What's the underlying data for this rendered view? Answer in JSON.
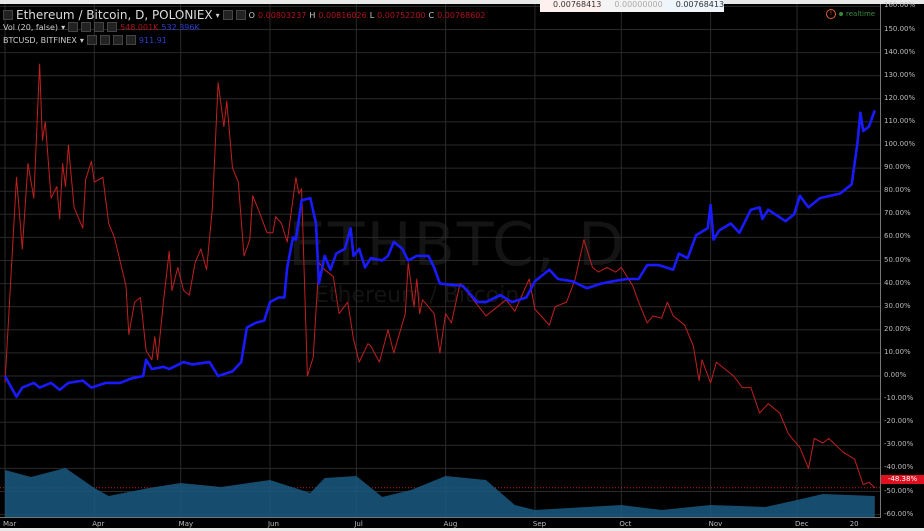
{
  "header": {
    "symbol_title": "Ethereum / Bitcoin, D, POLONIEX",
    "ohlc": {
      "o_label": "O",
      "o": "0.00803237",
      "h_label": "H",
      "h": "0.00816026",
      "l_label": "L",
      "l": "0.00752200",
      "c_label": "C",
      "c": "0.00768602"
    },
    "volume_label": "Vol (20, false)",
    "volume_values": [
      "548.001K",
      "532.396K"
    ],
    "compare_label": "BTCUSD, BITFINEX",
    "compare_value": "911.91",
    "overlay_values": [
      "0.00768413",
      "0.00000000",
      "0.00768413"
    ],
    "realtime": "realtime",
    "icons": [
      "menu-square-icon",
      "chevron-down-icon",
      "warning-circle-icon",
      "realtime-dot-icon"
    ]
  },
  "watermark": {
    "main": "ETHBTC, D",
    "sub": "Ethereum / Bitcoin"
  },
  "colors": {
    "eth_btc": "#c0201f",
    "btcusd": "#1a1aff",
    "volume": "#1a5a82",
    "last_label": "#e01020"
  },
  "chart_data": {
    "type": "line",
    "y_axis": {
      "ticks": [
        160,
        150,
        140,
        130,
        120,
        110,
        100,
        90,
        80,
        70,
        60,
        50,
        40,
        30,
        20,
        10,
        0,
        -10,
        -20,
        -30,
        -40,
        -50,
        -60
      ],
      "unit": "%",
      "range": [
        -60,
        160
      ]
    },
    "x_ticks": [
      {
        "label": "Mar",
        "date": "03-01"
      },
      {
        "label": "Apr",
        "date": "04-01"
      },
      {
        "label": "May",
        "date": "05-01"
      },
      {
        "label": "Jun",
        "date": "06-01"
      },
      {
        "label": "Jul",
        "date": "07-01"
      },
      {
        "label": "Aug",
        "date": "08-01"
      },
      {
        "label": "Sep",
        "date": "09-01"
      },
      {
        "label": "Oct",
        "date": "10-01"
      },
      {
        "label": "Nov",
        "date": "11-01"
      },
      {
        "label": "Dec",
        "date": "12-01"
      },
      {
        "label": "20",
        "date": "12-20"
      }
    ],
    "last_value_label": "-48.38%",
    "grid": true,
    "series": [
      {
        "name": "Ethereum / Bitcoin, D, POLONIEX",
        "points": [
          [
            "03-01",
            -3
          ],
          [
            "03-05",
            86
          ],
          [
            "03-07",
            55
          ],
          [
            "03-09",
            92
          ],
          [
            "03-11",
            77
          ],
          [
            "03-13",
            135
          ],
          [
            "03-14",
            102
          ],
          [
            "03-15",
            110
          ],
          [
            "03-17",
            77
          ],
          [
            "03-19",
            82
          ],
          [
            "03-20",
            68
          ],
          [
            "03-21",
            92
          ],
          [
            "03-22",
            82
          ],
          [
            "03-23",
            100
          ],
          [
            "03-25",
            73
          ],
          [
            "03-28",
            64
          ],
          [
            "03-29",
            85
          ],
          [
            "03-31",
            93
          ],
          [
            "04-01",
            84
          ],
          [
            "04-04",
            86
          ],
          [
            "04-06",
            66
          ],
          [
            "04-08",
            60
          ],
          [
            "04-12",
            39
          ],
          [
            "04-13",
            18
          ],
          [
            "04-15",
            32
          ],
          [
            "04-17",
            34
          ],
          [
            "04-19",
            11
          ],
          [
            "04-21",
            7
          ],
          [
            "04-22",
            17
          ],
          [
            "04-23",
            7
          ],
          [
            "04-25",
            32
          ],
          [
            "04-27",
            54
          ],
          [
            "04-28",
            37
          ],
          [
            "04-30",
            47
          ],
          [
            "05-02",
            37
          ],
          [
            "05-04",
            35
          ],
          [
            "05-06",
            49
          ],
          [
            "05-08",
            55
          ],
          [
            "05-10",
            46
          ],
          [
            "05-12",
            73
          ],
          [
            "05-14",
            127
          ],
          [
            "05-16",
            108
          ],
          [
            "05-17",
            119
          ],
          [
            "05-19",
            90
          ],
          [
            "05-21",
            84
          ],
          [
            "05-23",
            52
          ],
          [
            "05-25",
            59
          ],
          [
            "05-26",
            78
          ],
          [
            "05-28",
            72
          ],
          [
            "05-31",
            62
          ],
          [
            "06-02",
            62
          ],
          [
            "06-03",
            69
          ],
          [
            "06-05",
            66
          ],
          [
            "06-07",
            58
          ],
          [
            "06-10",
            86
          ],
          [
            "06-11",
            79
          ],
          [
            "06-12",
            81
          ],
          [
            "06-14",
            0
          ],
          [
            "06-16",
            8
          ],
          [
            "06-18",
            49
          ],
          [
            "06-20",
            46
          ],
          [
            "06-23",
            43
          ],
          [
            "06-25",
            27
          ],
          [
            "06-28",
            32
          ],
          [
            "06-30",
            16
          ],
          [
            "07-02",
            6
          ],
          [
            "07-05",
            14
          ],
          [
            "07-06",
            13
          ],
          [
            "07-09",
            6
          ],
          [
            "07-12",
            20
          ],
          [
            "07-14",
            10
          ],
          [
            "07-18",
            27
          ],
          [
            "07-19",
            49
          ],
          [
            "07-21",
            30
          ],
          [
            "07-22",
            42
          ],
          [
            "07-23",
            27
          ],
          [
            "07-24",
            33
          ],
          [
            "07-28",
            27
          ],
          [
            "07-30",
            10
          ],
          [
            "08-01",
            27
          ],
          [
            "08-03",
            23
          ],
          [
            "08-06",
            40
          ],
          [
            "08-10",
            34
          ],
          [
            "08-15",
            26
          ],
          [
            "08-19",
            30
          ],
          [
            "08-22",
            33
          ],
          [
            "08-25",
            28
          ],
          [
            "08-30",
            42
          ],
          [
            "09-01",
            29
          ],
          [
            "09-06",
            22
          ],
          [
            "09-08",
            30
          ],
          [
            "09-12",
            32
          ],
          [
            "09-15",
            42
          ],
          [
            "09-18",
            59
          ],
          [
            "09-21",
            47
          ],
          [
            "09-23",
            45
          ],
          [
            "09-26",
            47
          ],
          [
            "09-29",
            45
          ],
          [
            "10-01",
            47
          ],
          [
            "10-05",
            39
          ],
          [
            "10-07",
            32
          ],
          [
            "10-10",
            23
          ],
          [
            "10-12",
            26
          ],
          [
            "10-15",
            25
          ],
          [
            "10-17",
            32
          ],
          [
            "10-19",
            26
          ],
          [
            "10-23",
            22
          ],
          [
            "10-26",
            13
          ],
          [
            "10-28",
            -2
          ],
          [
            "10-29",
            7
          ],
          [
            "11-01",
            -3
          ],
          [
            "11-03",
            6
          ],
          [
            "11-06",
            3
          ],
          [
            "11-09",
            0
          ],
          [
            "11-12",
            -5
          ],
          [
            "11-15",
            -5
          ],
          [
            "11-18",
            -16
          ],
          [
            "11-21",
            -12
          ],
          [
            "11-25",
            -16
          ],
          [
            "11-28",
            -25
          ],
          [
            "12-02",
            -31
          ],
          [
            "12-05",
            -40
          ],
          [
            "12-07",
            -27
          ],
          [
            "12-10",
            -29
          ],
          [
            "12-12",
            -27
          ],
          [
            "12-17",
            -33
          ],
          [
            "12-21",
            -36
          ],
          [
            "12-24",
            -47
          ],
          [
            "12-26",
            -46
          ],
          [
            "12-28",
            -48.38
          ]
        ]
      },
      {
        "name": "BTCUSD, BITFINEX",
        "points": [
          [
            "03-01",
            0
          ],
          [
            "03-05",
            -9
          ],
          [
            "03-07",
            -5
          ],
          [
            "03-11",
            -3
          ],
          [
            "03-13",
            -5
          ],
          [
            "03-17",
            -3
          ],
          [
            "03-20",
            -6
          ],
          [
            "03-23",
            -3
          ],
          [
            "03-28",
            -2
          ],
          [
            "03-31",
            -5
          ],
          [
            "04-05",
            -3
          ],
          [
            "04-10",
            -3
          ],
          [
            "04-14",
            -1
          ],
          [
            "04-18",
            0
          ],
          [
            "04-19",
            7
          ],
          [
            "04-21",
            3
          ],
          [
            "04-25",
            4
          ],
          [
            "04-27",
            3
          ],
          [
            "05-02",
            6
          ],
          [
            "05-05",
            5
          ],
          [
            "05-11",
            6
          ],
          [
            "05-14",
            0
          ],
          [
            "05-19",
            2
          ],
          [
            "05-22",
            6
          ],
          [
            "05-24",
            21
          ],
          [
            "05-27",
            23
          ],
          [
            "05-30",
            24
          ],
          [
            "06-01",
            32
          ],
          [
            "06-04",
            34
          ],
          [
            "06-06",
            34
          ],
          [
            "06-07",
            47
          ],
          [
            "06-09",
            60
          ],
          [
            "06-10",
            59
          ],
          [
            "06-12",
            76
          ],
          [
            "06-15",
            77
          ],
          [
            "06-17",
            66
          ],
          [
            "06-18",
            40
          ],
          [
            "06-20",
            52
          ],
          [
            "06-22",
            46
          ],
          [
            "06-24",
            53
          ],
          [
            "06-27",
            55
          ],
          [
            "06-29",
            64
          ],
          [
            "06-30",
            52
          ],
          [
            "07-02",
            55
          ],
          [
            "07-04",
            47
          ],
          [
            "07-06",
            51
          ],
          [
            "07-10",
            50
          ],
          [
            "07-12",
            52
          ],
          [
            "07-14",
            58
          ],
          [
            "07-17",
            55
          ],
          [
            "07-19",
            50
          ],
          [
            "07-22",
            52
          ],
          [
            "07-26",
            52
          ],
          [
            "07-28",
            47
          ],
          [
            "07-30",
            40
          ],
          [
            "08-07",
            39
          ],
          [
            "08-12",
            32
          ],
          [
            "08-15",
            32
          ],
          [
            "08-20",
            35
          ],
          [
            "08-24",
            32
          ],
          [
            "08-29",
            34
          ],
          [
            "09-01",
            41
          ],
          [
            "09-06",
            46
          ],
          [
            "09-09",
            42
          ],
          [
            "09-14",
            41
          ],
          [
            "09-19",
            38
          ],
          [
            "09-24",
            40
          ],
          [
            "09-28",
            41
          ],
          [
            "10-03",
            42
          ],
          [
            "10-07",
            42
          ],
          [
            "10-10",
            48
          ],
          [
            "10-14",
            48
          ],
          [
            "10-19",
            46
          ],
          [
            "10-21",
            53
          ],
          [
            "10-24",
            51
          ],
          [
            "10-27",
            61
          ],
          [
            "10-31",
            64
          ],
          [
            "11-01",
            74
          ],
          [
            "11-02",
            59
          ],
          [
            "11-04",
            63
          ],
          [
            "11-08",
            66
          ],
          [
            "11-11",
            62
          ],
          [
            "11-15",
            72
          ],
          [
            "11-18",
            73
          ],
          [
            "11-19",
            68
          ],
          [
            "11-21",
            72
          ],
          [
            "11-27",
            67
          ],
          [
            "11-30",
            70
          ],
          [
            "12-02",
            78
          ],
          [
            "12-05",
            73
          ],
          [
            "12-09",
            77
          ],
          [
            "12-16",
            79
          ],
          [
            "12-20",
            83
          ],
          [
            "12-22",
            101
          ],
          [
            "12-23",
            114
          ],
          [
            "12-24",
            106
          ],
          [
            "12-26",
            108
          ],
          [
            "12-28",
            115
          ]
        ]
      }
    ],
    "volume_ma_relative": [
      [
        "03-01",
        0.94
      ],
      [
        "03-10",
        0.8
      ],
      [
        "03-22",
        0.98
      ],
      [
        "04-01",
        0.58
      ],
      [
        "04-06",
        0.42
      ],
      [
        "04-20",
        0.58
      ],
      [
        "05-01",
        0.68
      ],
      [
        "05-15",
        0.6
      ],
      [
        "06-01",
        0.74
      ],
      [
        "06-15",
        0.48
      ],
      [
        "06-20",
        0.78
      ],
      [
        "07-01",
        0.82
      ],
      [
        "07-10",
        0.4
      ],
      [
        "07-20",
        0.54
      ],
      [
        "08-01",
        0.82
      ],
      [
        "08-15",
        0.74
      ],
      [
        "08-25",
        0.24
      ],
      [
        "09-01",
        0.14
      ],
      [
        "10-01",
        0.24
      ],
      [
        "10-15",
        0.14
      ],
      [
        "11-01",
        0.24
      ],
      [
        "11-20",
        0.2
      ],
      [
        "12-01",
        0.34
      ],
      [
        "12-10",
        0.46
      ],
      [
        "12-28",
        0.42
      ]
    ]
  }
}
